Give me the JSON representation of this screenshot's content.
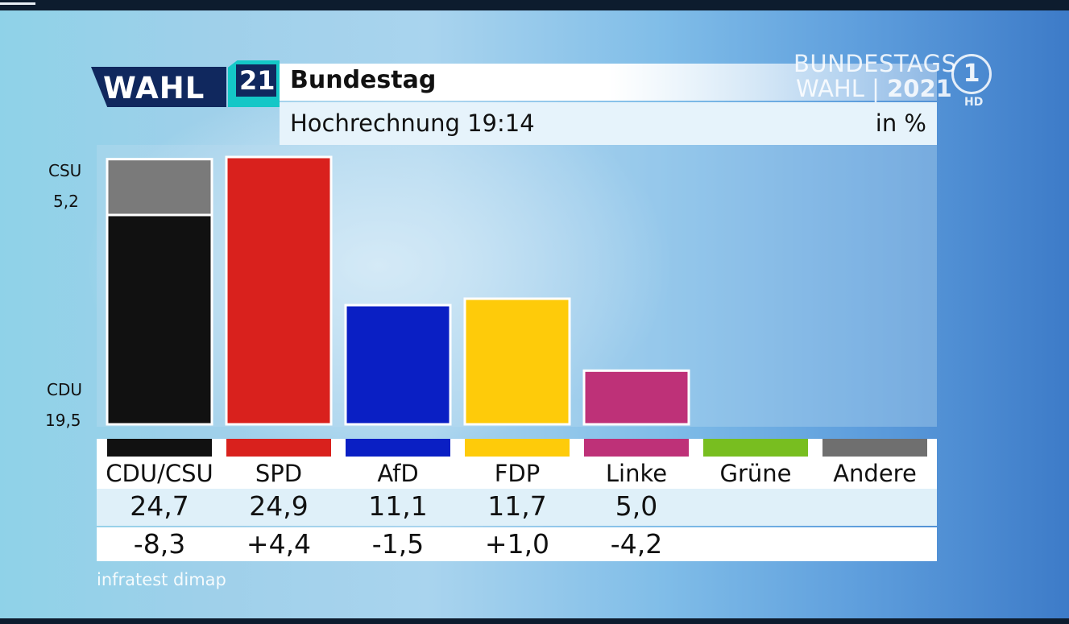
{
  "broadcast": {
    "wahl_label": "WAHL",
    "wahl_number": "21",
    "logo_line1": "BUNDESTAGS",
    "logo_line2_word": "WAHL",
    "logo_line2_sep": "|",
    "logo_line2_year": "2021",
    "channel": "1",
    "channel_hd": "HD",
    "source": "infratest dimap"
  },
  "chart_data": {
    "type": "bar",
    "title": "Bundestag",
    "subtitle": "Hochrechnung 19:14",
    "unit": "in %",
    "categories": [
      "CDU/CSU",
      "SPD",
      "AfD",
      "FDP",
      "Linke",
      "Grüne",
      "Andere"
    ],
    "values": [
      24.7,
      24.9,
      11.1,
      11.7,
      5.0,
      null,
      null
    ],
    "value_labels": [
      "24,7",
      "24,9",
      "11,1",
      "11,7",
      "5,0",
      "",
      ""
    ],
    "changes": [
      "-8,3",
      "+4,4",
      "-1,5",
      "+1,0",
      "-4,2",
      "",
      ""
    ],
    "colors": [
      "#111111",
      "#d9211d",
      "#0a1fc4",
      "#fecb0a",
      "#be3178",
      "#78be20",
      "#6f6f6f"
    ],
    "stacked_first": {
      "segments": [
        {
          "name": "CDU",
          "value": 19.5,
          "label": "19,5",
          "color": "#111111"
        },
        {
          "name": "CSU",
          "value": 5.2,
          "label": "5,2",
          "color": "#7a7a7a"
        }
      ]
    },
    "ylim": [
      0,
      25.5
    ],
    "grid": false,
    "legend": "bottom table"
  }
}
